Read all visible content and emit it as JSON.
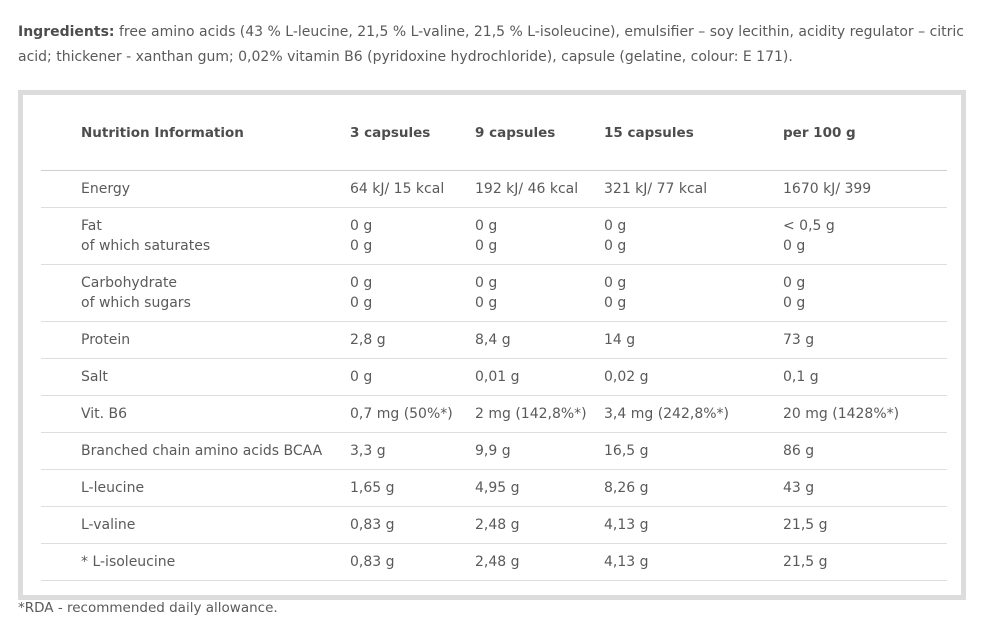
{
  "ingredients": {
    "label": "Ingredients:",
    "text": " free amino acids (43 % L-leucine, 21,5 % L-valine, 21,5 % L-isoleucine), emulsifier – soy lecithin, acidity regulator – citric acid; thickener - xanthan gum;  0,02% vitamin B6 (pyridoxine hydrochloride), capsule (gelatine, colour: E 171)."
  },
  "table": {
    "headers": [
      "Nutrition Information",
      "3 capsules",
      "9 capsules",
      "15 capsules",
      "per 100 g"
    ],
    "rows": [
      {
        "label": [
          "Energy"
        ],
        "c1": [
          "64 kJ/ 15 kcal"
        ],
        "c2": [
          "192 kJ/ 46 kcal"
        ],
        "c3": [
          "321 kJ/ 77 kcal"
        ],
        "c4": [
          "1670 kJ/ 399"
        ]
      },
      {
        "label": [
          "Fat",
          "of which saturates"
        ],
        "c1": [
          "0 g",
          "0 g"
        ],
        "c2": [
          "0 g",
          "0 g"
        ],
        "c3": [
          "0 g",
          "0 g"
        ],
        "c4": [
          "< 0,5 g",
          "0 g"
        ]
      },
      {
        "label": [
          "Carbohydrate",
          "of which sugars"
        ],
        "c1": [
          "0 g",
          "0 g"
        ],
        "c2": [
          "0 g",
          "0 g"
        ],
        "c3": [
          "0 g",
          "0 g"
        ],
        "c4": [
          "0 g",
          "0 g"
        ]
      },
      {
        "label": [
          "Protein"
        ],
        "c1": [
          "2,8 g"
        ],
        "c2": [
          "8,4 g"
        ],
        "c3": [
          "14 g"
        ],
        "c4": [
          "73 g"
        ]
      },
      {
        "label": [
          "Salt"
        ],
        "c1": [
          "0 g"
        ],
        "c2": [
          "0,01 g"
        ],
        "c3": [
          "0,02 g"
        ],
        "c4": [
          "0,1 g"
        ]
      },
      {
        "label": [
          "Vit. B6"
        ],
        "c1": [
          "0,7 mg (50%*)"
        ],
        "c2": [
          "2 mg (142,8%*)"
        ],
        "c3": [
          "3,4 mg (242,8%*)"
        ],
        "c4": [
          "20 mg (1428%*)"
        ]
      },
      {
        "label": [
          "Branched chain amino acids BCAA"
        ],
        "c1": [
          "3,3 g"
        ],
        "c2": [
          "9,9 g"
        ],
        "c3": [
          "16,5 g"
        ],
        "c4": [
          "86 g"
        ]
      },
      {
        "label": [
          "L-leucine"
        ],
        "c1": [
          "1,65 g"
        ],
        "c2": [
          "4,95 g"
        ],
        "c3": [
          "8,26 g"
        ],
        "c4": [
          "43 g"
        ]
      },
      {
        "label": [
          "L-valine"
        ],
        "c1": [
          "0,83 g"
        ],
        "c2": [
          "2,48 g"
        ],
        "c3": [
          "4,13 g"
        ],
        "c4": [
          "21,5 g"
        ]
      },
      {
        "label": [
          "* L-isoleucine"
        ],
        "c1": [
          "0,83 g"
        ],
        "c2": [
          "2,48 g"
        ],
        "c3": [
          "4,13 g"
        ],
        "c4": [
          "21,5 g"
        ]
      }
    ]
  },
  "footnote": "*RDA - recommended daily allowance."
}
